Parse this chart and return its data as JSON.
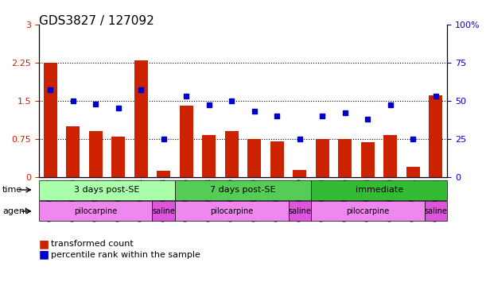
{
  "title": "GDS3827 / 127092",
  "samples": [
    "GSM367527",
    "GSM367528",
    "GSM367531",
    "GSM367532",
    "GSM367534",
    "GSM367718",
    "GSM367536",
    "GSM367538",
    "GSM367539",
    "GSM367540",
    "GSM367541",
    "GSM367719",
    "GSM367545",
    "GSM367546",
    "GSM367548",
    "GSM367549",
    "GSM367551",
    "GSM367721"
  ],
  "bar_values": [
    2.25,
    1.0,
    0.9,
    0.8,
    2.3,
    0.12,
    1.4,
    0.83,
    0.9,
    0.75,
    0.7,
    0.14,
    0.75,
    0.75,
    0.68,
    0.83,
    0.2,
    1.6
  ],
  "blue_values": [
    57,
    50,
    48,
    45,
    57,
    25,
    53,
    47,
    50,
    43,
    40,
    25,
    40,
    42,
    38,
    47,
    25,
    53
  ],
  "bar_color": "#cc2200",
  "blue_color": "#0000cc",
  "ylim_left": [
    0,
    3
  ],
  "ylim_right": [
    0,
    100
  ],
  "yticks_left": [
    0,
    0.75,
    1.5,
    2.25,
    3
  ],
  "yticks_right": [
    0,
    25,
    50,
    75,
    100
  ],
  "grid_values": [
    0.75,
    1.5,
    2.25
  ],
  "time_groups": [
    {
      "label": "3 days post-SE",
      "start": 0,
      "end": 5,
      "color": "#aaffaa"
    },
    {
      "label": "7 days post-SE",
      "start": 6,
      "end": 11,
      "color": "#55cc55"
    },
    {
      "label": "immediate",
      "start": 12,
      "end": 17,
      "color": "#33bb33"
    }
  ],
  "agent_groups": [
    {
      "label": "pilocarpine",
      "start": 0,
      "end": 4,
      "color": "#ee88ee"
    },
    {
      "label": "saline",
      "start": 5,
      "end": 5,
      "color": "#dd55dd"
    },
    {
      "label": "pilocarpine",
      "start": 6,
      "end": 10,
      "color": "#ee88ee"
    },
    {
      "label": "saline",
      "start": 11,
      "end": 11,
      "color": "#dd55dd"
    },
    {
      "label": "pilocarpine",
      "start": 12,
      "end": 16,
      "color": "#ee88ee"
    },
    {
      "label": "saline",
      "start": 17,
      "end": 17,
      "color": "#dd55dd"
    }
  ],
  "legend_items": [
    {
      "label": "transformed count",
      "color": "#cc2200"
    },
    {
      "label": "percentile rank within the sample",
      "color": "#0000cc"
    }
  ],
  "background_color": "#ffffff",
  "plot_bg_color": "#ffffff"
}
